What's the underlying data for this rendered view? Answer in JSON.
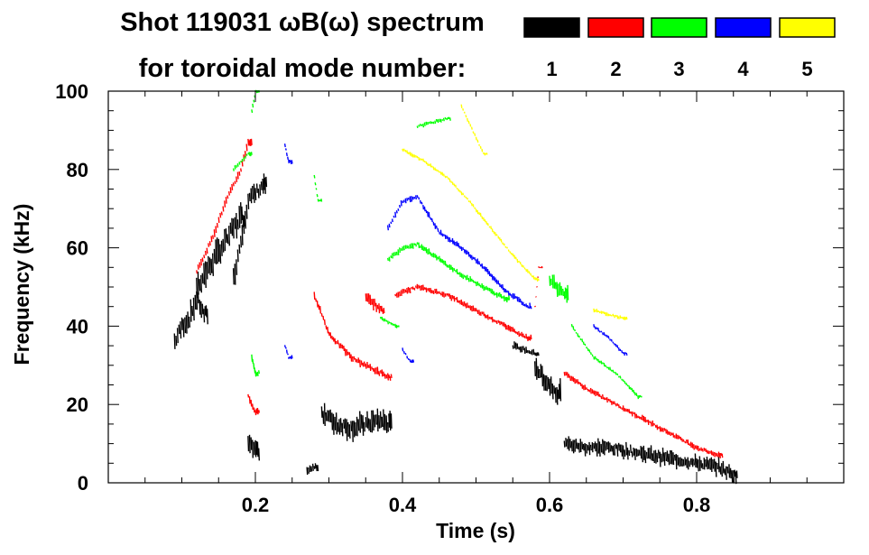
{
  "chart_data": {
    "type": "scatter",
    "title": "Shot 119031 ωB(ω) spectrum",
    "subtitle": "for toroidal mode number:",
    "xlabel": "Time (s)",
    "ylabel": "Frequency (kHz)",
    "xlim": [
      0.0,
      1.0
    ],
    "ylim": [
      0,
      100
    ],
    "xticks": [
      0.2,
      0.4,
      0.6,
      0.8
    ],
    "xtick_labels": [
      "0.2",
      "0.4",
      "0.6",
      "0.8"
    ],
    "yticks": [
      0,
      20,
      40,
      60,
      80,
      100
    ],
    "ytick_labels": [
      "0",
      "20",
      "40",
      "60",
      "80",
      "100"
    ],
    "legend_position": "top-right",
    "series": [
      {
        "name": "1",
        "color": "#000000",
        "segments": [
          {
            "x": [
              0.09,
              0.1,
              0.11,
              0.12,
              0.13
            ],
            "y": [
              36,
              40,
              42,
              47,
              43
            ],
            "spread": 6
          },
          {
            "x": [
              0.12,
              0.14,
              0.16,
              0.18
            ],
            "y": [
              50,
              56,
              62,
              68
            ],
            "spread": 7
          },
          {
            "x": [
              0.17,
              0.19,
              0.21
            ],
            "y": [
              52,
              72,
              76
            ],
            "spread": 6
          },
          {
            "x": [
              0.19,
              0.2
            ],
            "y": [
              10,
              8
            ],
            "spread": 5
          },
          {
            "x": [
              0.27,
              0.28
            ],
            "y": [
              3,
              4
            ],
            "spread": 2
          },
          {
            "x": [
              0.29,
              0.31,
              0.33,
              0.35,
              0.37,
              0.38
            ],
            "y": [
              18,
              15,
              14,
              15,
              16,
              15
            ],
            "spread": 6
          },
          {
            "x": [
              0.58,
              0.59,
              0.6,
              0.61
            ],
            "y": [
              30,
              27,
              25,
              23
            ],
            "spread": 6
          },
          {
            "x": [
              0.55,
              0.58
            ],
            "y": [
              35,
              33
            ],
            "spread": 2
          },
          {
            "x": [
              0.62,
              0.65,
              0.68,
              0.71,
              0.74,
              0.77,
              0.8,
              0.83,
              0.85
            ],
            "y": [
              10,
              9,
              9,
              8,
              7,
              6,
              5,
              4,
              2
            ],
            "spread": 4
          }
        ]
      },
      {
        "name": "2",
        "color": "#ff0000",
        "segments": [
          {
            "x": [
              0.12,
              0.14,
              0.16,
              0.18,
              0.19
            ],
            "y": [
              54,
              62,
              72,
              80,
              87
            ],
            "spread": 2
          },
          {
            "x": [
              0.19,
              0.2
            ],
            "y": [
              22,
              18
            ],
            "spread": 2
          },
          {
            "x": [
              0.28,
              0.3,
              0.33,
              0.36,
              0.38
            ],
            "y": [
              48,
              38,
              32,
              29,
              27
            ],
            "spread": 2
          },
          {
            "x": [
              0.35,
              0.36,
              0.37
            ],
            "y": [
              47,
              46,
              44
            ],
            "spread": 3
          },
          {
            "x": [
              0.39,
              0.42,
              0.46,
              0.5,
              0.54,
              0.57
            ],
            "y": [
              48,
              50,
              48,
              44,
              40,
              37
            ],
            "spread": 1.5
          },
          {
            "x": [
              0.62,
              0.65,
              0.68,
              0.71,
              0.74,
              0.77,
              0.8,
              0.83
            ],
            "y": [
              28,
              24,
              21,
              18,
              15,
              12,
              9,
              7
            ],
            "spread": 1.5
          },
          {
            "x": [
              0.58,
              0.585
            ],
            "y": [
              45,
              55
            ],
            "spread": 0.5
          }
        ]
      },
      {
        "name": "3",
        "color": "#00ff00",
        "segments": [
          {
            "x": [
              0.195,
              0.2
            ],
            "y": [
              95,
              100
            ],
            "spread": 1
          },
          {
            "x": [
              0.17,
              0.19
            ],
            "y": [
              80,
              84
            ],
            "spread": 1
          },
          {
            "x": [
              0.195,
              0.2
            ],
            "y": [
              32,
              28
            ],
            "spread": 2
          },
          {
            "x": [
              0.28,
              0.285
            ],
            "y": [
              78,
              72
            ],
            "spread": 1
          },
          {
            "x": [
              0.38,
              0.4,
              0.42,
              0.45,
              0.48,
              0.51,
              0.54
            ],
            "y": [
              57,
              60,
              61,
              57,
              53,
              50,
              47
            ],
            "spread": 1.5
          },
          {
            "x": [
              0.37,
              0.39
            ],
            "y": [
              42,
              40
            ],
            "spread": 1
          },
          {
            "x": [
              0.42,
              0.44,
              0.46
            ],
            "y": [
              91,
              92,
              93
            ],
            "spread": 1
          },
          {
            "x": [
              0.6,
              0.62
            ],
            "y": [
              52,
              48
            ],
            "spread": 4
          },
          {
            "x": [
              0.63,
              0.66,
              0.69,
              0.72
            ],
            "y": [
              40,
              32,
              28,
              22
            ],
            "spread": 1
          }
        ]
      },
      {
        "name": "4",
        "color": "#0000ff",
        "segments": [
          {
            "x": [
              0.38,
              0.4,
              0.42,
              0.45,
              0.48,
              0.51,
              0.54,
              0.57
            ],
            "y": [
              65,
              72,
              73,
              64,
              60,
              55,
              49,
              45
            ],
            "spread": 1.5
          },
          {
            "x": [
              0.24,
              0.245
            ],
            "y": [
              86,
              82
            ],
            "spread": 1
          },
          {
            "x": [
              0.24,
              0.245
            ],
            "y": [
              35,
              32
            ],
            "spread": 1
          },
          {
            "x": [
              0.4,
              0.41
            ],
            "y": [
              34,
              31
            ],
            "spread": 1
          },
          {
            "x": [
              0.66,
              0.68,
              0.7
            ],
            "y": [
              40,
              37,
              33
            ],
            "spread": 1
          }
        ]
      },
      {
        "name": "5",
        "color": "#ffff00",
        "segments": [
          {
            "x": [
              0.4,
              0.43,
              0.46,
              0.49,
              0.52,
              0.55,
              0.58
            ],
            "y": [
              85,
              82,
              78,
              72,
              65,
              58,
              52
            ],
            "spread": 1
          },
          {
            "x": [
              0.66,
              0.68,
              0.7
            ],
            "y": [
              44,
              43,
              42
            ],
            "spread": 1
          },
          {
            "x": [
              0.48,
              0.51
            ],
            "y": [
              96,
              84
            ],
            "spread": 1
          }
        ]
      }
    ]
  }
}
